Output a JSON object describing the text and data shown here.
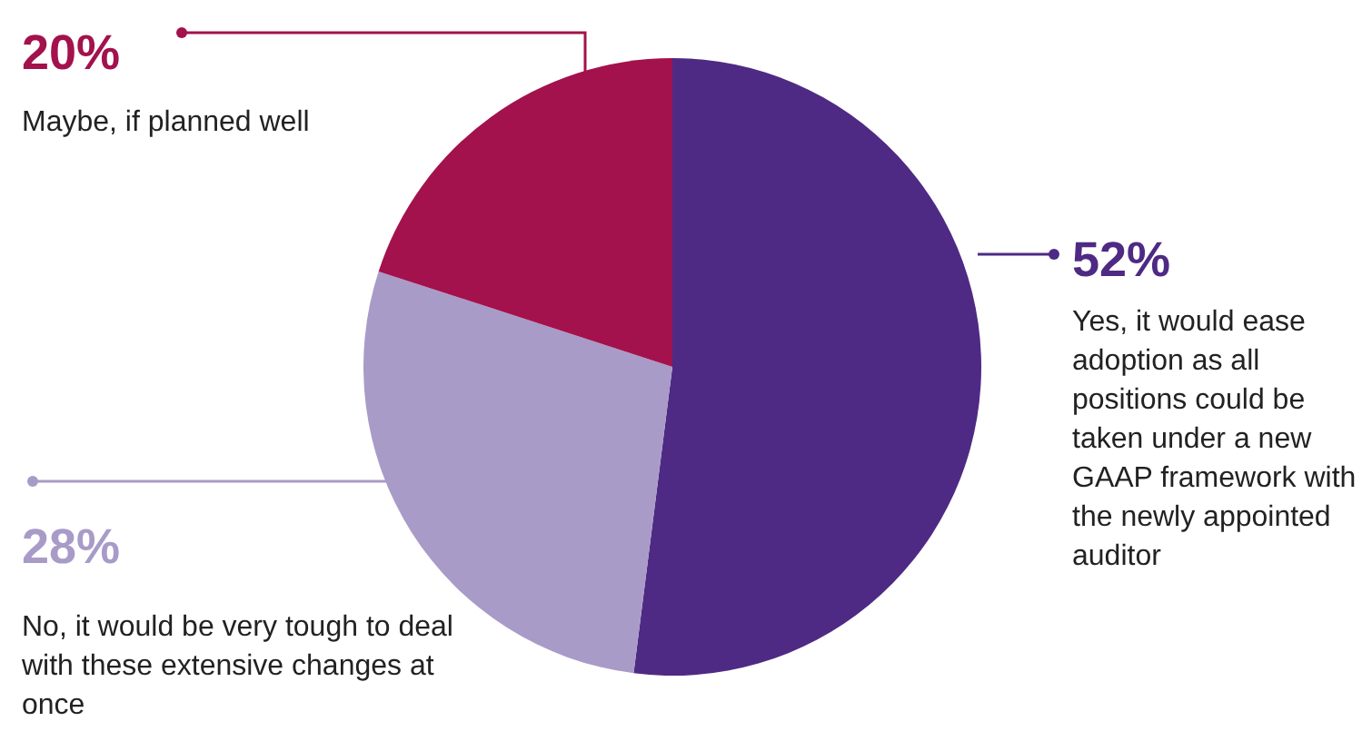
{
  "chart_data": {
    "type": "pie",
    "categories": [
      "Yes, it would ease adoption as all positions could be taken under a new GAAP framework with the newly appointed auditor",
      "No, it would be very tough to deal with these extensive changes at once",
      "Maybe, if planned well"
    ],
    "values": [
      52,
      28,
      20
    ],
    "colors": [
      "#4e2a84",
      "#a99bc8",
      "#a3124c"
    ],
    "value_labels": [
      "52%",
      "28%",
      "20%"
    ]
  }
}
